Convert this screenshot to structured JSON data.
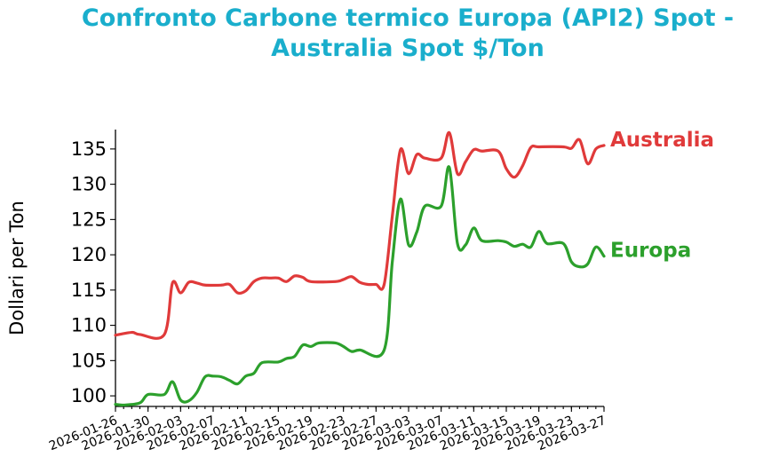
{
  "chart_data": {
    "type": "line",
    "title": [
      "Confronto Carbone termico Europa (API2) Spot -",
      "Australia Spot $/Ton"
    ],
    "xlabel": "",
    "ylabel": "Dollari per Ton",
    "xlim": [
      "2026-01-26",
      "2026-03-27"
    ],
    "ylim": [
      98.5,
      137.5
    ],
    "yticks": [
      100,
      105,
      110,
      115,
      120,
      125,
      130,
      135
    ],
    "xticks": [
      "2026-01-26",
      "2026-01-30",
      "2026-02-03",
      "2026-02-07",
      "2026-02-11",
      "2026-02-15",
      "2026-02-19",
      "2026-02-23",
      "2026-02-27",
      "2026-03-03",
      "2026-03-07",
      "2026-03-11",
      "2026-03-15",
      "2026-03-19",
      "2026-03-23",
      "2026-03-27"
    ],
    "grid": false,
    "series": [
      {
        "name": "Australia",
        "color": "#e03a3a",
        "points": [
          [
            "2026-01-26",
            108.6
          ],
          [
            "2026-01-28",
            109.0
          ],
          [
            "2026-01-29",
            108.7
          ],
          [
            "2026-02-01",
            108.7
          ],
          [
            "2026-02-02",
            116.0
          ],
          [
            "2026-02-03",
            114.6
          ],
          [
            "2026-02-04",
            116.1
          ],
          [
            "2026-02-05",
            116.0
          ],
          [
            "2026-02-06",
            115.7
          ],
          [
            "2026-02-08",
            115.7
          ],
          [
            "2026-02-09",
            115.8
          ],
          [
            "2026-02-10",
            114.6
          ],
          [
            "2026-02-11",
            114.9
          ],
          [
            "2026-02-12",
            116.2
          ],
          [
            "2026-02-13",
            116.7
          ],
          [
            "2026-02-14",
            116.7
          ],
          [
            "2026-02-15",
            116.7
          ],
          [
            "2026-02-16",
            116.2
          ],
          [
            "2026-02-17",
            117.0
          ],
          [
            "2026-02-18",
            116.8
          ],
          [
            "2026-02-19",
            116.2
          ],
          [
            "2026-02-22",
            116.2
          ],
          [
            "2026-02-23",
            116.5
          ],
          [
            "2026-02-24",
            116.9
          ],
          [
            "2026-02-25",
            116.1
          ],
          [
            "2026-02-26",
            115.8
          ],
          [
            "2026-02-27",
            115.8
          ],
          [
            "2026-02-28",
            115.8
          ],
          [
            "2026-03-01",
            125.5
          ],
          [
            "2026-03-02",
            134.9
          ],
          [
            "2026-03-03",
            131.5
          ],
          [
            "2026-03-04",
            134.2
          ],
          [
            "2026-03-05",
            133.7
          ],
          [
            "2026-03-07",
            133.7
          ],
          [
            "2026-03-08",
            137.3
          ],
          [
            "2026-03-09",
            131.5
          ],
          [
            "2026-03-10",
            133.2
          ],
          [
            "2026-03-11",
            134.9
          ],
          [
            "2026-03-12",
            134.7
          ],
          [
            "2026-03-14",
            134.7
          ],
          [
            "2026-03-15",
            132.2
          ],
          [
            "2026-03-16",
            131.0
          ],
          [
            "2026-03-17",
            132.6
          ],
          [
            "2026-03-18",
            135.2
          ],
          [
            "2026-03-19",
            135.3
          ],
          [
            "2026-03-22",
            135.3
          ],
          [
            "2026-03-23",
            135.1
          ],
          [
            "2026-03-24",
            136.3
          ],
          [
            "2026-03-25",
            132.9
          ],
          [
            "2026-03-26",
            135.0
          ],
          [
            "2026-03-27",
            135.5
          ]
        ]
      },
      {
        "name": "Europa",
        "color": "#2ca02c",
        "points": [
          [
            "2026-01-26",
            98.8
          ],
          [
            "2026-01-27",
            98.7
          ],
          [
            "2026-01-29",
            99.0
          ],
          [
            "2026-01-30",
            100.2
          ],
          [
            "2026-02-01",
            100.2
          ],
          [
            "2026-02-02",
            102.0
          ],
          [
            "2026-02-03",
            99.4
          ],
          [
            "2026-02-04",
            99.3
          ],
          [
            "2026-02-05",
            100.5
          ],
          [
            "2026-02-06",
            102.7
          ],
          [
            "2026-02-07",
            102.8
          ],
          [
            "2026-02-08",
            102.7
          ],
          [
            "2026-02-09",
            102.2
          ],
          [
            "2026-02-10",
            101.7
          ],
          [
            "2026-02-11",
            102.8
          ],
          [
            "2026-02-12",
            103.2
          ],
          [
            "2026-02-13",
            104.7
          ],
          [
            "2026-02-15",
            104.8
          ],
          [
            "2026-02-16",
            105.3
          ],
          [
            "2026-02-17",
            105.6
          ],
          [
            "2026-02-18",
            107.2
          ],
          [
            "2026-02-19",
            107.0
          ],
          [
            "2026-02-20",
            107.5
          ],
          [
            "2026-02-22",
            107.5
          ],
          [
            "2026-02-23",
            107.0
          ],
          [
            "2026-02-24",
            106.3
          ],
          [
            "2026-02-25",
            106.5
          ],
          [
            "2026-02-28",
            106.5
          ],
          [
            "2026-03-01",
            119.0
          ],
          [
            "2026-03-02",
            127.9
          ],
          [
            "2026-03-03",
            121.4
          ],
          [
            "2026-03-04",
            123.2
          ],
          [
            "2026-03-05",
            126.9
          ],
          [
            "2026-03-07",
            126.9
          ],
          [
            "2026-03-08",
            132.4
          ],
          [
            "2026-03-09",
            121.6
          ],
          [
            "2026-03-10",
            121.4
          ],
          [
            "2026-03-11",
            123.8
          ],
          [
            "2026-03-12",
            122.0
          ],
          [
            "2026-03-14",
            122.0
          ],
          [
            "2026-03-15",
            121.8
          ],
          [
            "2026-03-16",
            121.2
          ],
          [
            "2026-03-17",
            121.5
          ],
          [
            "2026-03-18",
            121.1
          ],
          [
            "2026-03-19",
            123.3
          ],
          [
            "2026-03-20",
            121.6
          ],
          [
            "2026-03-22",
            121.6
          ],
          [
            "2026-03-23",
            119.0
          ],
          [
            "2026-03-24",
            118.3
          ],
          [
            "2026-03-25",
            118.7
          ],
          [
            "2026-03-26",
            121.1
          ],
          [
            "2026-03-27",
            119.8
          ]
        ]
      }
    ]
  }
}
